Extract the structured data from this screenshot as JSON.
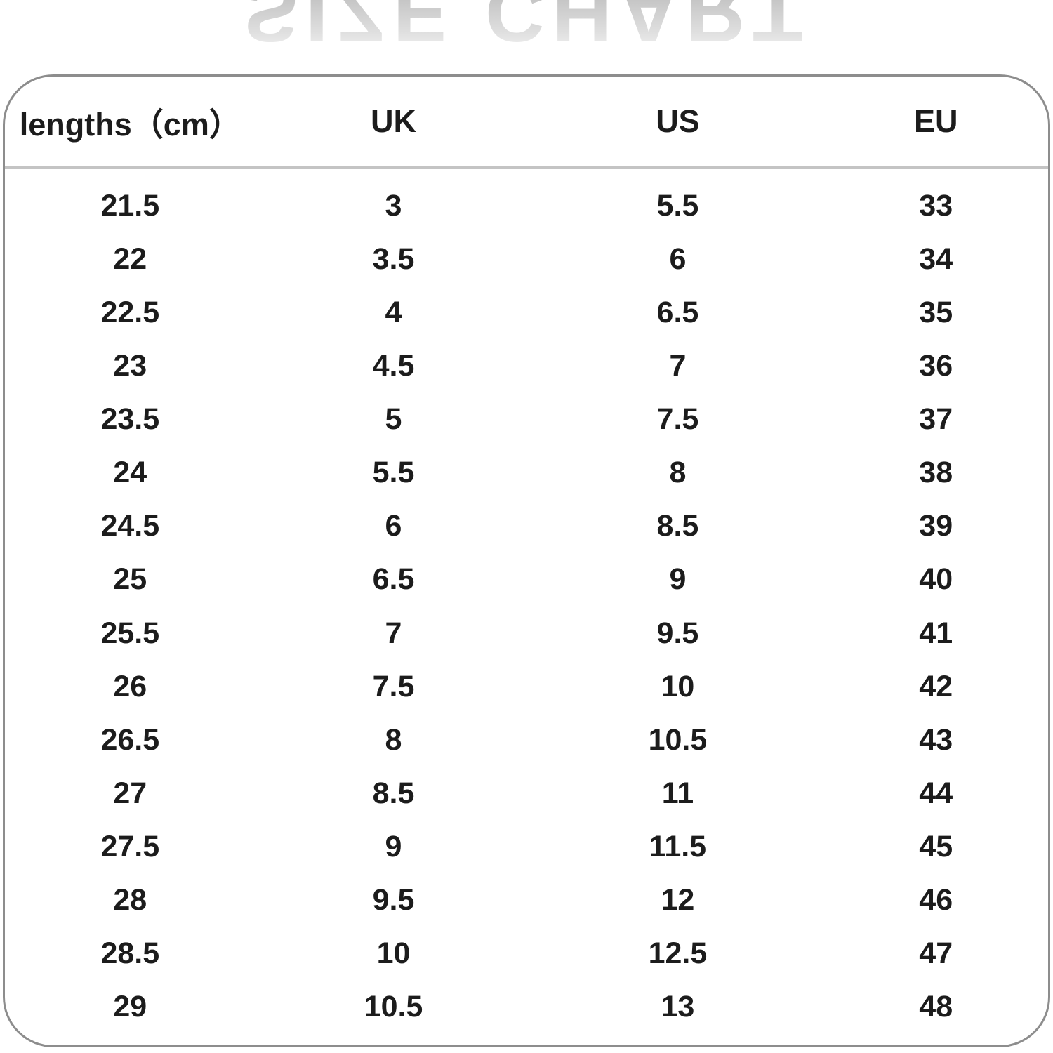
{
  "watermark": {
    "text": "SIZE CHART"
  },
  "table": {
    "columns": [
      "lengths（cm）",
      "UK",
      "US",
      "EU"
    ],
    "rows": [
      [
        "21.5",
        "3",
        "5.5",
        "33"
      ],
      [
        "22",
        "3.5",
        "6",
        "34"
      ],
      [
        "22.5",
        "4",
        "6.5",
        "35"
      ],
      [
        "23",
        "4.5",
        "7",
        "36"
      ],
      [
        "23.5",
        "5",
        "7.5",
        "37"
      ],
      [
        "24",
        "5.5",
        "8",
        "38"
      ],
      [
        "24.5",
        "6",
        "8.5",
        "39"
      ],
      [
        "25",
        "6.5",
        "9",
        "40"
      ],
      [
        "25.5",
        "7",
        "9.5",
        "41"
      ],
      [
        "26",
        "7.5",
        "10",
        "42"
      ],
      [
        "26.5",
        "8",
        "10.5",
        "43"
      ],
      [
        "27",
        "8.5",
        "11",
        "44"
      ],
      [
        "27.5",
        "9",
        "11.5",
        "45"
      ],
      [
        "28",
        "9.5",
        "12",
        "46"
      ],
      [
        "28.5",
        "10",
        "12.5",
        "47"
      ],
      [
        "29",
        "10.5",
        "13",
        "48"
      ]
    ]
  },
  "chart_data": {
    "type": "table",
    "title": "SIZE CHART",
    "columns": [
      "lengths (cm)",
      "UK",
      "US",
      "EU"
    ],
    "rows": [
      [
        21.5,
        3,
        5.5,
        33
      ],
      [
        22,
        3.5,
        6,
        34
      ],
      [
        22.5,
        4,
        6.5,
        35
      ],
      [
        23,
        4.5,
        7,
        36
      ],
      [
        23.5,
        5,
        7.5,
        37
      ],
      [
        24,
        5.5,
        8,
        38
      ],
      [
        24.5,
        6,
        8.5,
        39
      ],
      [
        25,
        6.5,
        9,
        40
      ],
      [
        25.5,
        7,
        9.5,
        41
      ],
      [
        26,
        7.5,
        10,
        42
      ],
      [
        26.5,
        8,
        10.5,
        43
      ],
      [
        27,
        8.5,
        11,
        44
      ],
      [
        27.5,
        9,
        11.5,
        45
      ],
      [
        28,
        9.5,
        12,
        46
      ],
      [
        28.5,
        10,
        12.5,
        47
      ],
      [
        29,
        10.5,
        13,
        48
      ]
    ]
  },
  "colors": {
    "text": "#1c1c1c",
    "card_border": "#8d8d8d",
    "header_divider": "#c4c4c4",
    "watermark": "#c6c6c6",
    "background": "#ffffff"
  }
}
